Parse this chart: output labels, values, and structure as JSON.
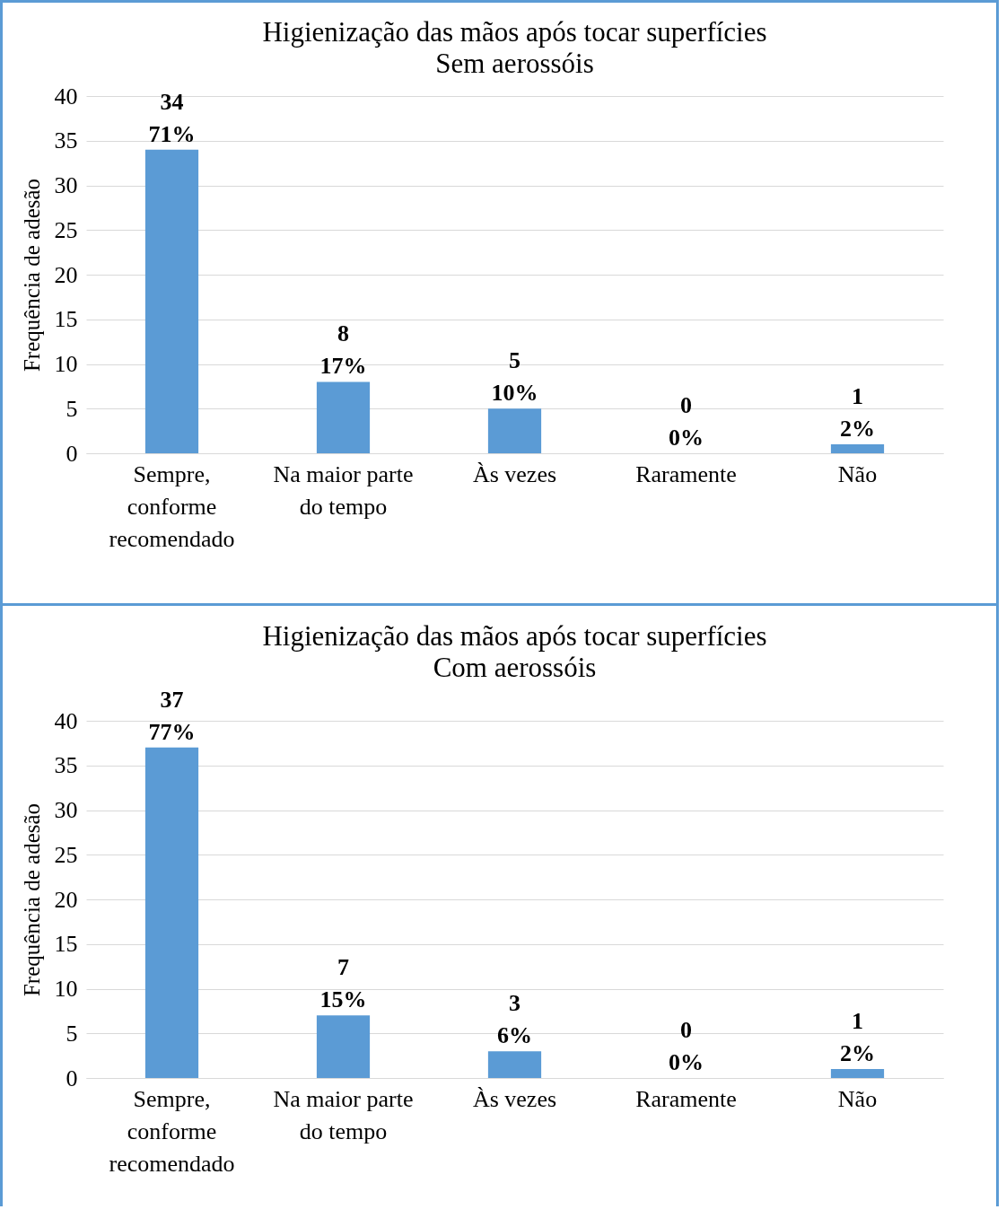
{
  "chart_data": [
    {
      "type": "bar",
      "title": "Higienização das mãos após tocar superfícies",
      "subtitle": "Sem aerossóis",
      "ylabel": "Frequência de adesão",
      "categories": [
        "Sempre, conforme recomendado",
        "Na maior parte do tempo",
        "Às vezes",
        "Raramente",
        "Não"
      ],
      "values": [
        34,
        8,
        5,
        0,
        1
      ],
      "value_labels": [
        "34\n71%",
        "8\n17%",
        "5\n10%",
        "0\n0%",
        "1\n2%"
      ],
      "color": "#5b9bd5",
      "ylim": [
        0,
        40
      ],
      "yticks": [
        0,
        5,
        10,
        15,
        20,
        25,
        30,
        35,
        40
      ],
      "grid": "y"
    },
    {
      "type": "bar",
      "title": "Higienização das mãos após tocar superfícies",
      "subtitle": "Com aerossóis",
      "ylabel": "Frequência de adesão",
      "categories": [
        "Sempre, conforme recomendado",
        "Na maior parte do tempo",
        "Às vezes",
        "Raramente",
        "Não"
      ],
      "values": [
        37,
        7,
        3,
        0,
        1
      ],
      "value_labels": [
        "37\n77%",
        "7\n15%",
        "3\n6%",
        "0\n0%",
        "1\n2%"
      ],
      "color": "#5b9bd5",
      "ylim": [
        0,
        40
      ],
      "yticks": [
        0,
        5,
        10,
        15,
        20,
        25,
        30,
        35,
        40
      ],
      "grid": "y"
    }
  ]
}
